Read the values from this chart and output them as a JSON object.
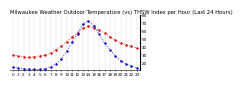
{
  "title": "Milwaukee Weather Outdoor Temperature (vs) THSW Index per Hour (Last 24 Hours)",
  "hours": [
    0,
    1,
    2,
    3,
    4,
    5,
    6,
    7,
    8,
    9,
    10,
    11,
    12,
    13,
    14,
    15,
    16,
    17,
    18,
    19,
    20,
    21,
    22,
    23
  ],
  "temp": [
    29,
    28,
    27,
    26,
    27,
    28,
    29,
    31,
    36,
    40,
    46,
    52,
    57,
    63,
    65,
    63,
    60,
    57,
    52,
    48,
    44,
    42,
    40,
    38
  ],
  "thsw": [
    14,
    13,
    12,
    11,
    11,
    11,
    12,
    14,
    18,
    24,
    34,
    46,
    56,
    68,
    72,
    66,
    55,
    44,
    36,
    28,
    22,
    18,
    15,
    13
  ],
  "temp_color": "#dd0000",
  "thsw_color": "#0000cc",
  "ylim_min": 10,
  "ylim_max": 80,
  "yticks": [
    20,
    30,
    40,
    50,
    60,
    70,
    80
  ],
  "ytick_labels": [
    "20",
    "30",
    "40",
    "50",
    "60",
    "70",
    "80"
  ],
  "bg_color": "#ffffff",
  "grid_color": "#999999",
  "title_fontsize": 3.8,
  "tick_fontsize": 3.0,
  "line_width": 0.5,
  "marker_size": 1.5
}
